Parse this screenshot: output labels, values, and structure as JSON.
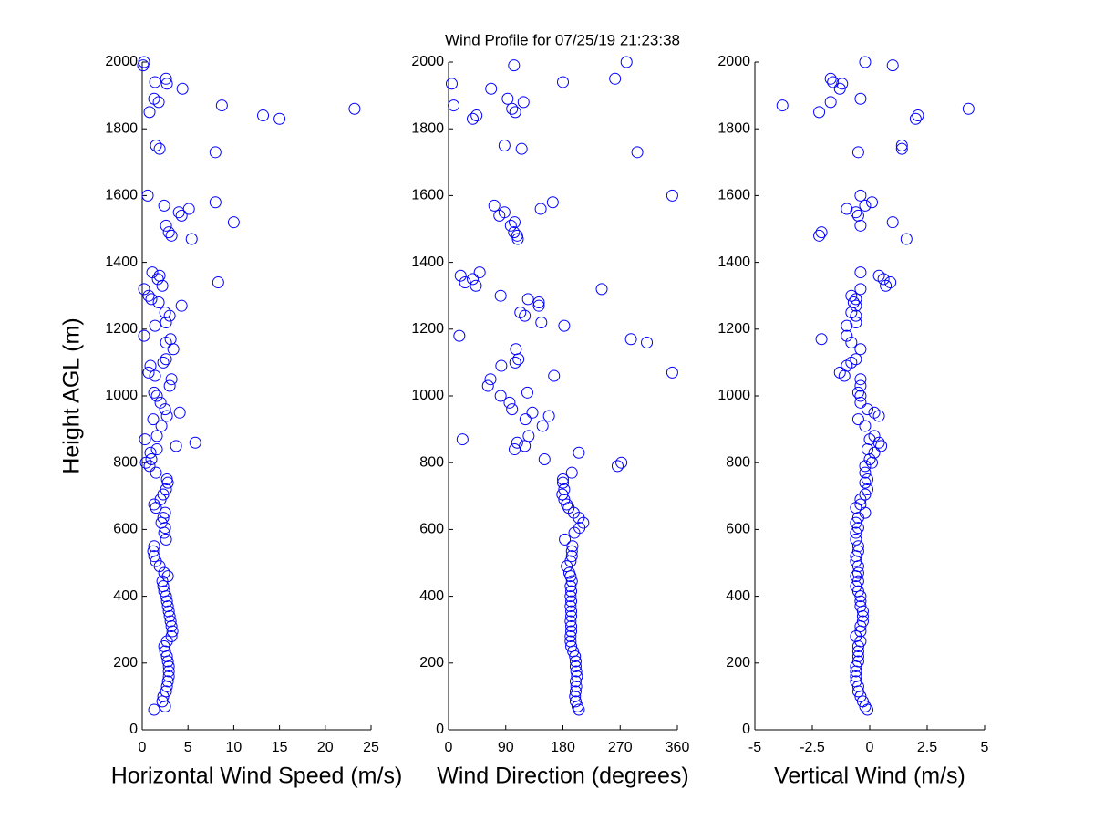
{
  "title": "Wind Profile for  07/25/19 21:23:38",
  "chart_data": [
    {
      "type": "scatter",
      "xlabel": "Horizontal Wind Speed (m/s)",
      "ylabel": "Height AGL (m)",
      "color": "#0000ff",
      "xlim": [
        0,
        25
      ],
      "xticks": [
        0,
        5,
        10,
        15,
        20,
        25
      ],
      "ylim": [
        0,
        2000
      ],
      "yticks": [
        0,
        200,
        400,
        600,
        800,
        1000,
        1200,
        1400,
        1600,
        1800,
        2000
      ],
      "x": [
        1.3,
        2.5,
        2.2,
        2.3,
        2.6,
        2.7,
        2.8,
        2.9,
        2.9,
        2.9,
        2.8,
        2.7,
        2.5,
        2.4,
        2.7,
        3.2,
        3.3,
        3.2,
        3.1,
        3.0,
        2.9,
        2.8,
        2.7,
        2.6,
        2.4,
        2.3,
        2.2,
        2.8,
        2.4,
        1.9,
        1.5,
        1.3,
        1.2,
        1.3,
        2.6,
        2.4,
        2.5,
        2.1,
        2.3,
        2.5,
        1.5,
        1.3,
        2.0,
        2.3,
        2.6,
        2.8,
        2.7,
        1.5,
        0.8,
        0.4,
        1.0,
        0.9,
        1.6,
        3.7,
        5.8,
        0.3,
        1.6,
        2.1,
        1.2,
        2.7,
        4.1,
        2.5,
        2.0,
        1.6,
        1.3,
        3.0,
        3.2,
        1.4,
        0.7,
        0.9,
        2.3,
        2.6,
        3.4,
        2.6,
        3.1,
        0.2,
        1.4,
        2.6,
        3.0,
        2.5,
        4.3,
        1.8,
        1.0,
        0.7,
        0.2,
        2.2,
        1.7,
        1.9,
        1.1,
        8.3,
        5.4,
        3.2,
        2.9,
        2.6,
        10.0,
        4.3,
        4.0,
        5.1,
        8.0,
        2.4,
        0.6,
        8.0,
        1.9,
        1.5,
        15.0,
        13.2,
        0.8,
        23.2,
        8.7,
        1.8,
        1.3,
        4.4,
        2.7,
        1.4,
        2.6,
        0.1,
        0.2
      ],
      "y": [
        60,
        70,
        85,
        100,
        115,
        130,
        145,
        160,
        175,
        190,
        205,
        220,
        235,
        250,
        265,
        280,
        295,
        310,
        325,
        340,
        355,
        370,
        385,
        400,
        415,
        430,
        445,
        460,
        470,
        490,
        505,
        520,
        535,
        550,
        570,
        590,
        605,
        620,
        635,
        650,
        665,
        675,
        690,
        705,
        720,
        740,
        750,
        770,
        790,
        800,
        810,
        830,
        840,
        850,
        860,
        870,
        880,
        910,
        930,
        940,
        950,
        960,
        980,
        1000,
        1010,
        1030,
        1050,
        1060,
        1070,
        1090,
        1100,
        1110,
        1140,
        1160,
        1170,
        1180,
        1210,
        1220,
        1240,
        1250,
        1270,
        1280,
        1290,
        1300,
        1320,
        1330,
        1350,
        1360,
        1370,
        1340,
        1470,
        1480,
        1490,
        1510,
        1520,
        1540,
        1550,
        1560,
        1580,
        1570,
        1600,
        1730,
        1740,
        1750,
        1830,
        1840,
        1850,
        1860,
        1870,
        1880,
        1890,
        1920,
        1935,
        1940,
        1950,
        1990,
        2000
      ]
    },
    {
      "type": "scatter",
      "xlabel": "Wind Direction (degrees)",
      "color": "#0000ff",
      "xlim": [
        0,
        360
      ],
      "xticks": [
        0,
        90,
        180,
        270,
        360
      ],
      "ylim": [
        0,
        2000
      ],
      "yticks": [
        0,
        200,
        400,
        600,
        800,
        1000,
        1200,
        1400,
        1600,
        1800,
        2000
      ],
      "x": [
        205,
        203,
        200,
        199,
        200,
        201,
        200,
        202,
        201,
        200,
        200,
        199,
        196,
        193,
        192,
        192,
        193,
        193,
        192,
        193,
        193,
        192,
        193,
        192,
        193,
        192,
        194,
        192,
        190,
        186,
        192,
        194,
        194,
        195,
        183,
        198,
        206,
        212,
        205,
        197,
        189,
        186,
        182,
        179,
        182,
        180,
        180,
        194,
        266,
        272,
        151,
        205,
        104,
        120,
        108,
        22,
        126,
        148,
        121,
        158,
        132,
        100,
        96,
        82,
        124,
        62,
        66,
        166,
        352,
        83,
        105,
        110,
        106,
        312,
        287,
        17,
        182,
        146,
        120,
        113,
        142,
        142,
        125,
        82,
        241,
        43,
        38,
        19,
        49,
        26,
        109,
        108,
        103,
        98,
        104,
        80,
        88,
        145,
        164,
        72,
        352,
        297,
        115,
        88,
        38,
        44,
        105,
        100,
        8,
        118,
        93,
        67,
        5,
        180,
        262,
        103,
        280
      ],
      "y": [
        60,
        70,
        85,
        100,
        115,
        130,
        145,
        160,
        175,
        190,
        205,
        220,
        235,
        250,
        265,
        280,
        295,
        310,
        325,
        340,
        355,
        370,
        385,
        400,
        415,
        430,
        445,
        460,
        470,
        490,
        505,
        520,
        535,
        550,
        570,
        590,
        605,
        620,
        635,
        650,
        665,
        675,
        690,
        705,
        720,
        740,
        750,
        770,
        790,
        800,
        810,
        830,
        840,
        850,
        860,
        870,
        880,
        910,
        930,
        940,
        950,
        960,
        980,
        1000,
        1010,
        1030,
        1050,
        1060,
        1070,
        1090,
        1100,
        1110,
        1140,
        1160,
        1170,
        1180,
        1210,
        1220,
        1240,
        1250,
        1270,
        1280,
        1290,
        1300,
        1320,
        1330,
        1350,
        1360,
        1370,
        1340,
        1470,
        1480,
        1490,
        1510,
        1520,
        1540,
        1550,
        1560,
        1580,
        1570,
        1600,
        1730,
        1740,
        1750,
        1830,
        1840,
        1850,
        1860,
        1870,
        1880,
        1890,
        1920,
        1935,
        1940,
        1950,
        1990,
        2000
      ]
    },
    {
      "type": "scatter",
      "xlabel": "Vertical Wind (m/s)",
      "color": "#0000ff",
      "xlim": [
        -5,
        5
      ],
      "xticks": [
        -5,
        -2.5,
        0,
        2.5,
        5
      ],
      "ylim": [
        0,
        2000
      ],
      "yticks": [
        0,
        200,
        400,
        600,
        800,
        1000,
        1200,
        1400,
        1600,
        1800,
        2000
      ],
      "x": [
        -0.1,
        -0.2,
        -0.3,
        -0.4,
        -0.5,
        -0.5,
        -0.6,
        -0.6,
        -0.6,
        -0.6,
        -0.5,
        -0.5,
        -0.5,
        -0.5,
        -0.4,
        -0.6,
        -0.4,
        -0.4,
        -0.3,
        -0.3,
        -0.3,
        -0.4,
        -0.4,
        -0.4,
        -0.5,
        -0.6,
        -0.5,
        -0.6,
        -0.5,
        -0.5,
        -0.6,
        -0.6,
        -0.5,
        -0.5,
        -0.6,
        -0.6,
        -0.5,
        -0.6,
        -0.5,
        -0.2,
        -0.6,
        -0.4,
        -0.4,
        -0.2,
        -0.1,
        -0.2,
        -0.1,
        -0.2,
        -0.2,
        0.1,
        0.0,
        0.2,
        -0.1,
        0.5,
        0.4,
        0.0,
        0.2,
        -0.2,
        -0.5,
        0.4,
        0.2,
        -0.1,
        -0.4,
        -0.4,
        -0.5,
        -0.4,
        -0.4,
        -1.1,
        -1.3,
        -1.0,
        -0.8,
        -0.6,
        -0.4,
        -0.8,
        -2.1,
        -1.0,
        -1.0,
        -0.6,
        -0.6,
        -0.8,
        -0.6,
        -0.7,
        -0.6,
        -0.8,
        -0.4,
        0.7,
        0.6,
        0.4,
        -0.4,
        0.9,
        1.6,
        -2.2,
        -2.1,
        -0.4,
        1.0,
        -0.5,
        -0.6,
        -1.0,
        0.1,
        -0.2,
        -0.4,
        -0.5,
        1.4,
        1.4,
        2.0,
        2.1,
        -2.2,
        4.3,
        -3.8,
        -1.7,
        -0.4,
        -1.3,
        -1.2,
        -1.6,
        -1.7,
        1.0,
        -0.2
      ],
      "y": [
        60,
        70,
        85,
        100,
        115,
        130,
        145,
        160,
        175,
        190,
        205,
        220,
        235,
        250,
        265,
        280,
        295,
        310,
        325,
        340,
        355,
        370,
        385,
        400,
        415,
        430,
        445,
        460,
        470,
        490,
        505,
        520,
        535,
        550,
        570,
        590,
        605,
        620,
        635,
        650,
        665,
        675,
        690,
        705,
        720,
        740,
        750,
        770,
        790,
        800,
        810,
        830,
        840,
        850,
        860,
        870,
        880,
        910,
        930,
        940,
        950,
        960,
        980,
        1000,
        1010,
        1030,
        1050,
        1060,
        1070,
        1090,
        1100,
        1110,
        1140,
        1160,
        1170,
        1180,
        1210,
        1220,
        1240,
        1250,
        1270,
        1280,
        1290,
        1300,
        1320,
        1330,
        1350,
        1360,
        1370,
        1340,
        1470,
        1480,
        1490,
        1510,
        1520,
        1540,
        1550,
        1560,
        1580,
        1570,
        1600,
        1730,
        1740,
        1750,
        1830,
        1840,
        1850,
        1860,
        1870,
        1880,
        1890,
        1920,
        1935,
        1940,
        1950,
        1990,
        2000
      ]
    }
  ]
}
